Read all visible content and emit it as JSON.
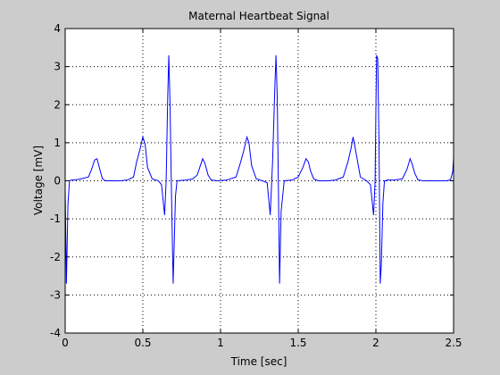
{
  "chart_data": {
    "type": "line",
    "title": "Maternal Heartbeat Signal",
    "xlabel": "Time [sec]",
    "ylabel": "Voltage [mV]",
    "xlim": [
      0,
      2.5
    ],
    "ylim": [
      -4,
      4
    ],
    "xticks": [
      0,
      0.5,
      1,
      1.5,
      2,
      2.5
    ],
    "xtick_labels": [
      "0",
      "0.5",
      "1",
      "1.5",
      "2",
      "2.5"
    ],
    "yticks": [
      -4,
      -3,
      -2,
      -1,
      0,
      1,
      2,
      3,
      4
    ],
    "ytick_labels": [
      "-4",
      "-3",
      "-2",
      "-1",
      "0",
      "1",
      "2",
      "3",
      "4"
    ],
    "grid": true,
    "line_color": "#0000ff",
    "axes_color": "#000000",
    "background_color": "#cccccc",
    "plot_background_color": "#ffffff",
    "series": [
      {
        "x": [
          0,
          0.008,
          0.018,
          0.028,
          0.04,
          0.06,
          0.1,
          0.15,
          0.17,
          0.19,
          0.205,
          0.22,
          0.24,
          0.26,
          0.3,
          0.35,
          0.4,
          0.44,
          0.46,
          0.48,
          0.5,
          0.515,
          0.53,
          0.56,
          0.6,
          0.62,
          0.64,
          0.65,
          0.66,
          0.667,
          0.675,
          0.685,
          0.695,
          0.71,
          0.72,
          0.78,
          0.82,
          0.85,
          0.87,
          0.885,
          0.9,
          0.92,
          0.94,
          0.98,
          1.04,
          1.1,
          1.13,
          1.15,
          1.17,
          1.183,
          1.2,
          1.23,
          1.27,
          1.3,
          1.32,
          1.335,
          1.35,
          1.357,
          1.365,
          1.372,
          1.38,
          1.39,
          1.41,
          1.46,
          1.5,
          1.53,
          1.55,
          1.565,
          1.58,
          1.6,
          1.63,
          1.69,
          1.74,
          1.79,
          1.82,
          1.84,
          1.853,
          1.865,
          1.9,
          1.94,
          1.965,
          1.985,
          1.995,
          2,
          2.005,
          2.012,
          2.02,
          2.028,
          2.035,
          2.045,
          2.055,
          2.065,
          2.07,
          2.12,
          2.17,
          2.2,
          2.22,
          2.233,
          2.25,
          2.27,
          2.3,
          2.35,
          2.4,
          2.45,
          2.48,
          2.495,
          2.5
        ],
        "y": [
          -0.2,
          -2.7,
          -0.6,
          0.0,
          0.02,
          0.02,
          0.05,
          0.1,
          0.3,
          0.55,
          0.58,
          0.35,
          0.05,
          0.0,
          0.0,
          0.0,
          0.02,
          0.1,
          0.5,
          0.8,
          1.15,
          0.95,
          0.35,
          0.05,
          0.0,
          -0.1,
          -0.9,
          0.0,
          2.2,
          3.3,
          2.0,
          -0.5,
          -2.7,
          -0.4,
          0.0,
          0.02,
          0.05,
          0.15,
          0.4,
          0.58,
          0.45,
          0.15,
          0.02,
          0.0,
          0.02,
          0.1,
          0.5,
          0.8,
          1.15,
          1.0,
          0.4,
          0.05,
          0.0,
          -0.05,
          -0.9,
          0.5,
          2.5,
          3.3,
          2.2,
          0.0,
          -2.7,
          -0.8,
          0.0,
          0.02,
          0.1,
          0.35,
          0.58,
          0.5,
          0.25,
          0.05,
          0.0,
          0.0,
          0.02,
          0.1,
          0.5,
          0.85,
          1.15,
          0.9,
          0.1,
          0.0,
          -0.1,
          -0.9,
          0.0,
          1.9,
          3.3,
          3.2,
          1.0,
          -2.7,
          -2.2,
          -0.6,
          0.0,
          0.0,
          0.02,
          0.02,
          0.05,
          0.3,
          0.58,
          0.45,
          0.2,
          0.03,
          0.0,
          0.0,
          0.0,
          0.0,
          0.02,
          0.25,
          0.6
        ]
      }
    ]
  }
}
